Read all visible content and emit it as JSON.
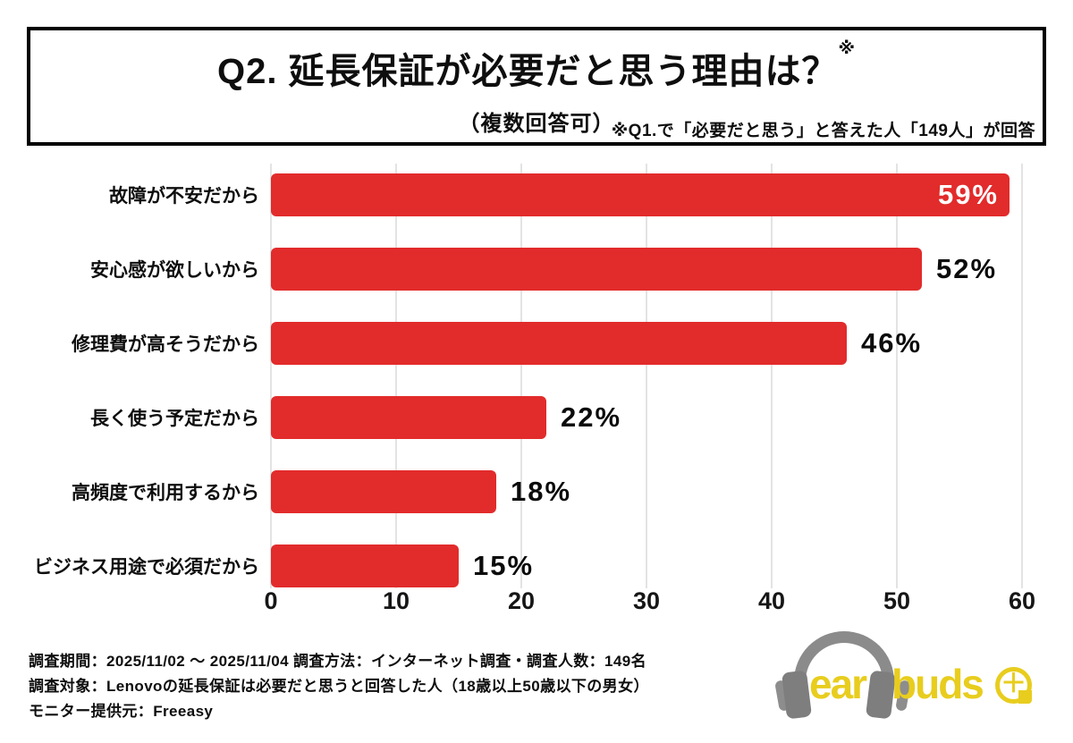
{
  "header": {
    "title": "Q2. 延長保証が必要だと思う理由は？",
    "title_note_mark": "※",
    "subtitle": "（複数回答可）",
    "note": "※Q1.で「必要だと思う」と答えた人「149人」が回答"
  },
  "chart_data": {
    "type": "bar",
    "orientation": "horizontal",
    "title": "Q2. 延長保証が必要だと思う理由は？（複数回答可）",
    "categories": [
      "故障が不安だから",
      "安心感が欲しいから",
      "修理費が高そうだから",
      "長く使う予定だから",
      "高頻度で利用するから",
      "ビジネス用途で必須だから"
    ],
    "values": [
      59,
      52,
      46,
      22,
      18,
      15
    ],
    "value_labels": [
      "59%",
      "52%",
      "46%",
      "22%",
      "18%",
      "15%"
    ],
    "value_label_placement": [
      "inside",
      "outside",
      "outside",
      "outside",
      "outside",
      "outside"
    ],
    "unit": "%",
    "xlabel": "",
    "ylabel": "",
    "xlim": [
      0,
      60
    ],
    "xticks": [
      0,
      10,
      20,
      30,
      40,
      50,
      60
    ],
    "grid": true,
    "bar_color": "#e22b2b",
    "grid_color": "#e3e3e3",
    "inside_label_color": "#ffffff",
    "outside_label_color": "#0b0b0b"
  },
  "footer": {
    "lines": [
      "調査期間：2025/11/02 ～ 2025/11/04  調査方法：インターネット調査・調査人数：149名",
      "調査対象：Lenovoの延長保証は必要だと思うと回答した人（18歳以上50歳以下の男女）",
      "モニター提供元：Freeasy"
    ]
  },
  "logo": {
    "word_left": "ear",
    "word_right": "buds",
    "plus_sign": "＋",
    "brand_yellow": "#e8cd1e",
    "headphone_gray": "#8b8b8b"
  }
}
